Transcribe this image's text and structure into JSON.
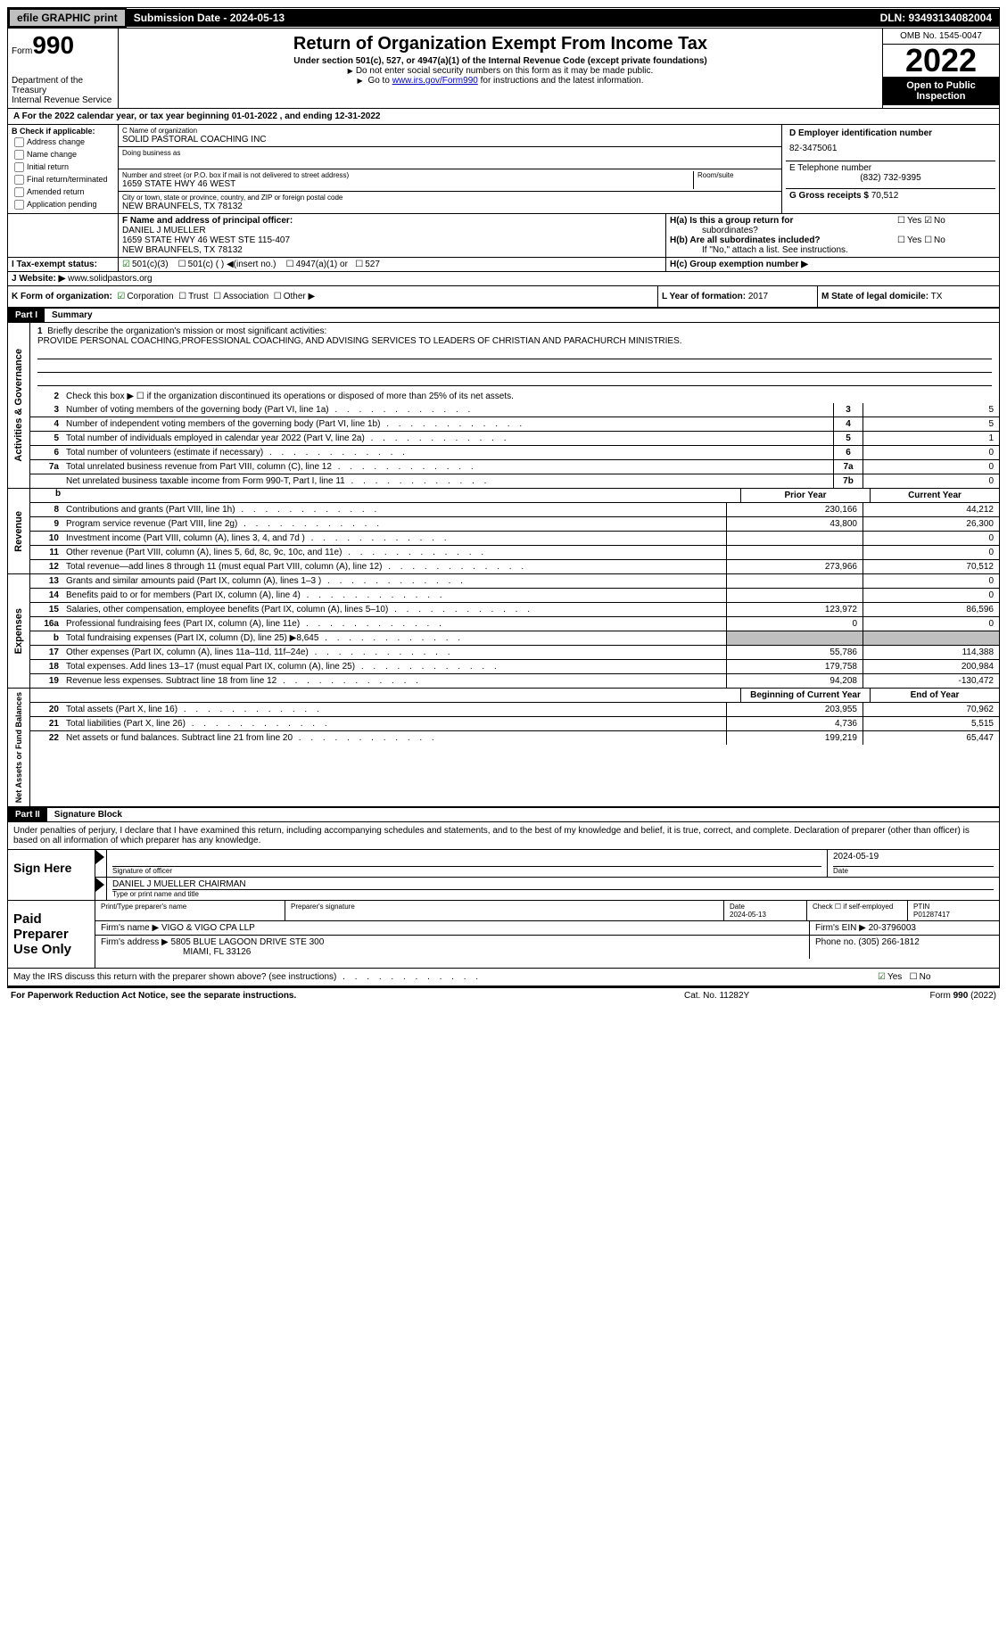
{
  "topbar": {
    "efile": "efile GRAPHIC print",
    "submission": "Submission Date - 2024-05-13",
    "dln": "DLN: 93493134082004"
  },
  "header": {
    "form_label": "Form",
    "form_no": "990",
    "dept": "Department of the Treasury\nInternal Revenue Service",
    "title": "Return of Organization Exempt From Income Tax",
    "subtitle": "Under section 501(c), 527, or 4947(a)(1) of the Internal Revenue Code (except private foundations)",
    "note1": "Do not enter social security numbers on this form as it may be made public.",
    "note2_pre": "Go to ",
    "note2_link": "www.irs.gov/Form990",
    "note2_post": " for instructions and the latest information.",
    "omb": "OMB No. 1545-0047",
    "year": "2022",
    "inspect": "Open to Public Inspection"
  },
  "row_a": "For the 2022 calendar year, or tax year beginning 01-01-2022   , and ending 12-31-2022",
  "b": {
    "label": "B Check if applicable:",
    "opts": [
      "Address change",
      "Name change",
      "Initial return",
      "Final return/terminated",
      "Amended return",
      "Application pending"
    ]
  },
  "c": {
    "name_label": "C Name of organization",
    "name": "SOLID PASTORAL COACHING INC",
    "dba_label": "Doing business as",
    "addr_label": "Number and street (or P.O. box if mail is not delivered to street address)",
    "room_label": "Room/suite",
    "addr": "1659 STATE HWY 46 WEST",
    "city_label": "City or town, state or province, country, and ZIP or foreign postal code",
    "city": "NEW BRAUNFELS, TX  78132"
  },
  "d": {
    "ein_label": "D Employer identification number",
    "ein": "82-3475061",
    "tel_label": "E Telephone number",
    "tel": "(832) 732-9395",
    "gross_label": "G Gross receipts $",
    "gross": "70,512"
  },
  "f": {
    "label": "F  Name and address of principal officer:",
    "name": "DANIEL J MUELLER",
    "addr1": "1659 STATE HWY 46 WEST STE 115-407",
    "addr2": "NEW BRAUNFELS, TX  78132"
  },
  "h": {
    "a1": "H(a)  Is this a group return for",
    "a2": "subordinates?",
    "b1": "H(b)  Are all subordinates included?",
    "b2": "If \"No,\" attach a list. See instructions.",
    "c": "H(c)  Group exemption number ▶"
  },
  "i": {
    "label": "I   Tax-exempt status:",
    "o1": "501(c)(3)",
    "o2": "501(c) (  ) ◀(insert no.)",
    "o3": "4947(a)(1) or",
    "o4": "527"
  },
  "j": {
    "label": "J   Website: ▶",
    "val": "www.solidpastors.org"
  },
  "k": {
    "label": "K Form of organization:",
    "o1": "Corporation",
    "o2": "Trust",
    "o3": "Association",
    "o4": "Other ▶"
  },
  "l": {
    "label": "L Year of formation:",
    "val": "2017"
  },
  "m": {
    "label": "M State of legal domicile:",
    "val": "TX"
  },
  "part1": {
    "hdr": "Part I",
    "title": "Summary",
    "q1_label": "Briefly describe the organization's mission or most significant activities:",
    "q1_text": "PROVIDE PERSONAL COACHING,PROFESSIONAL COACHING, AND ADVISING SERVICES TO LEADERS OF CHRISTIAN AND PARACHURCH MINISTRIES.",
    "q2": "Check this box ▶ ☐  if the organization discontinued its operations or disposed of more than 25% of its net assets.",
    "side1": "Activities & Governance",
    "side2": "Revenue",
    "side3": "Expenses",
    "side4": "Net Assets or Fund Balances",
    "hdr_prior": "Prior Year",
    "hdr_current": "Current Year",
    "hdr_begin": "Beginning of Current Year",
    "hdr_end": "End of Year",
    "rows_top": [
      {
        "n": "3",
        "d": "Number of voting members of the governing body (Part VI, line 1a)",
        "b": "3",
        "v": "5"
      },
      {
        "n": "4",
        "d": "Number of independent voting members of the governing body (Part VI, line 1b)",
        "b": "4",
        "v": "5"
      },
      {
        "n": "5",
        "d": "Total number of individuals employed in calendar year 2022 (Part V, line 2a)",
        "b": "5",
        "v": "1"
      },
      {
        "n": "6",
        "d": "Total number of volunteers (estimate if necessary)",
        "b": "6",
        "v": "0"
      },
      {
        "n": "7a",
        "d": "Total unrelated business revenue from Part VIII, column (C), line 12",
        "b": "7a",
        "v": "0"
      },
      {
        "n": "",
        "d": "Net unrelated business taxable income from Form 990-T, Part I, line 11",
        "b": "7b",
        "v": "0"
      }
    ],
    "rows_rev": [
      {
        "n": "8",
        "d": "Contributions and grants (Part VIII, line 1h)",
        "p": "230,166",
        "c": "44,212"
      },
      {
        "n": "9",
        "d": "Program service revenue (Part VIII, line 2g)",
        "p": "43,800",
        "c": "26,300"
      },
      {
        "n": "10",
        "d": "Investment income (Part VIII, column (A), lines 3, 4, and 7d )",
        "p": "",
        "c": "0"
      },
      {
        "n": "11",
        "d": "Other revenue (Part VIII, column (A), lines 5, 6d, 8c, 9c, 10c, and 11e)",
        "p": "",
        "c": "0"
      },
      {
        "n": "12",
        "d": "Total revenue—add lines 8 through 11 (must equal Part VIII, column (A), line 12)",
        "p": "273,966",
        "c": "70,512"
      }
    ],
    "rows_exp": [
      {
        "n": "13",
        "d": "Grants and similar amounts paid (Part IX, column (A), lines 1–3 )",
        "p": "",
        "c": "0"
      },
      {
        "n": "14",
        "d": "Benefits paid to or for members (Part IX, column (A), line 4)",
        "p": "",
        "c": "0"
      },
      {
        "n": "15",
        "d": "Salaries, other compensation, employee benefits (Part IX, column (A), lines 5–10)",
        "p": "123,972",
        "c": "86,596"
      },
      {
        "n": "16a",
        "d": "Professional fundraising fees (Part IX, column (A), line 11e)",
        "p": "0",
        "c": "0"
      },
      {
        "n": "b",
        "d": "Total fundraising expenses (Part IX, column (D), line 25) ▶8,645",
        "p": "gray",
        "c": "gray"
      },
      {
        "n": "17",
        "d": "Other expenses (Part IX, column (A), lines 11a–11d, 11f–24e)",
        "p": "55,786",
        "c": "114,388"
      },
      {
        "n": "18",
        "d": "Total expenses. Add lines 13–17 (must equal Part IX, column (A), line 25)",
        "p": "179,758",
        "c": "200,984"
      },
      {
        "n": "19",
        "d": "Revenue less expenses. Subtract line 18 from line 12",
        "p": "94,208",
        "c": "-130,472"
      }
    ],
    "rows_net": [
      {
        "n": "20",
        "d": "Total assets (Part X, line 16)",
        "p": "203,955",
        "c": "70,962"
      },
      {
        "n": "21",
        "d": "Total liabilities (Part X, line 26)",
        "p": "4,736",
        "c": "5,515"
      },
      {
        "n": "22",
        "d": "Net assets or fund balances. Subtract line 21 from line 20",
        "p": "199,219",
        "c": "65,447"
      }
    ]
  },
  "part2": {
    "hdr": "Part II",
    "title": "Signature Block",
    "intro": "Under penalties of perjury, I declare that I have examined this return, including accompanying schedules and statements, and to the best of my knowledge and belief, it is true, correct, and complete. Declaration of preparer (other than officer) is based on all information of which preparer has any knowledge.",
    "sign_here": "Sign Here",
    "sig_officer": "Signature of officer",
    "sig_date": "2024-05-19",
    "date_label": "Date",
    "officer_name": "DANIEL J MUELLER  CHAIRMAN",
    "type_label": "Type or print name and title",
    "paid": "Paid Preparer Use Only",
    "prep_name_label": "Print/Type preparer's name",
    "prep_sig_label": "Preparer's signature",
    "prep_date_label": "Date",
    "prep_date": "2024-05-13",
    "check_label": "Check ☐ if self-employed",
    "ptin_label": "PTIN",
    "ptin": "P01287417",
    "firm_name_label": "Firm's name    ▶",
    "firm_name": "VIGO & VIGO CPA LLP",
    "firm_ein_label": "Firm's EIN ▶",
    "firm_ein": "20-3796003",
    "firm_addr_label": "Firm's address ▶",
    "firm_addr1": "5805 BLUE LAGOON DRIVE STE 300",
    "firm_addr2": "MIAMI, FL  33126",
    "firm_tel_label": "Phone no.",
    "firm_tel": "(305) 266-1812",
    "may_discuss": "May the IRS discuss this return with the preparer shown above? (see instructions)"
  },
  "footer": {
    "l": "For Paperwork Reduction Act Notice, see the separate instructions.",
    "m": "Cat. No. 11282Y",
    "r": "Form 990 (2022)"
  },
  "yn": {
    "yes": "Yes",
    "no": "No"
  }
}
